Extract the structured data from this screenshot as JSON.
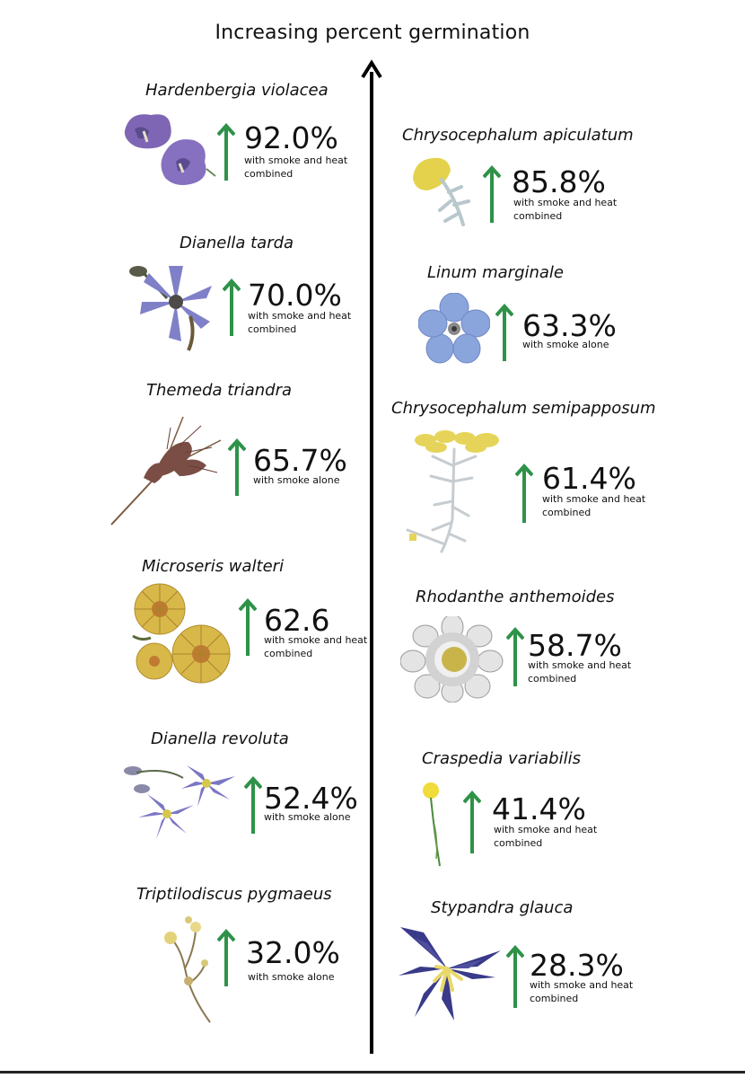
{
  "title": "Increasing percent germination",
  "colors": {
    "arrow_green": "#2e9248",
    "axis": "#000000"
  },
  "left_column": [
    {
      "species": "Hardenbergia violacea",
      "value": "92.0%",
      "condition": "with smoke and heat\ncombined",
      "icon": "purple-pea-flower-icon"
    },
    {
      "species": "Dianella tarda",
      "value": "70.0%",
      "condition": "with smoke and heat\ncombined",
      "icon": "blue-star-flower-icon"
    },
    {
      "species": "Themeda triandra",
      "value": "65.7%",
      "condition": "with smoke alone",
      "icon": "grass-seedhead-icon"
    },
    {
      "species": "Microseris walteri",
      "value": "62.6",
      "condition": "with smoke and heat\ncombined",
      "icon": "yellow-daisy-icon"
    },
    {
      "species": "Dianella revoluta",
      "value": "52.4%",
      "condition": "with smoke alone",
      "icon": "purple-star-flower-icon"
    },
    {
      "species": "Triptilodiscus pygmaeus",
      "value": "32.0%",
      "condition": "with smoke alone",
      "icon": "small-yellow-flower-icon"
    }
  ],
  "right_column": [
    {
      "species": "Chrysocephalum apiculatum",
      "value": "85.8%",
      "condition": "with smoke and heat\ncombined",
      "icon": "yellow-button-flower-icon"
    },
    {
      "species": "Linum marginale",
      "value": "63.3%",
      "condition": "with smoke alone",
      "icon": "blue-flax-flower-icon"
    },
    {
      "species": "Chrysocephalum semipapposum",
      "value": "61.4%",
      "condition": "with smoke and heat\ncombined",
      "icon": "yellow-cluster-flower-icon"
    },
    {
      "species": "Rhodanthe anthemoides",
      "value": "58.7%",
      "condition": "with smoke and heat\ncombined",
      "icon": "white-paper-daisy-icon"
    },
    {
      "species": "Craspedia variabilis",
      "value": "41.4%",
      "condition": "with smoke and heat\ncombined",
      "icon": "yellow-billy-button-icon"
    },
    {
      "species": "Stypandra glauca",
      "value": "28.3%",
      "condition": "with smoke and heat\ncombined",
      "icon": "blue-lily-flower-icon"
    }
  ]
}
